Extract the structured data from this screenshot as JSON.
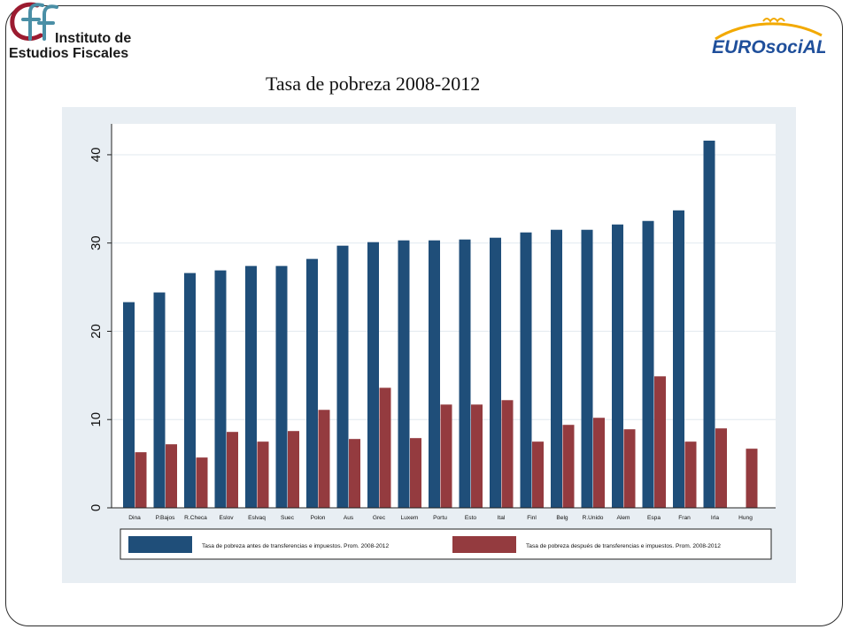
{
  "header": {
    "ief_logo_text_line1": "Instituto de",
    "ief_logo_text_line2": "Estudios Fiscales",
    "eurosocial_logo_text": "EUROsociAL",
    "slide_title": "Tasa de pobreza 2008-2012"
  },
  "colors": {
    "before": "#1f4e79",
    "after": "#943b3f",
    "plot_bg": "#ffffff",
    "outer_bg": "#e8eef3"
  },
  "chart_data": {
    "type": "bar",
    "categories": [
      "Dina",
      "P.Bajos",
      "R.Checa",
      "Eslov",
      "Eslvaq",
      "Suec",
      "Polon",
      "Aus",
      "Grec",
      "Luxem",
      "Portu",
      "Esto",
      "Ital",
      "Finl",
      "Belg",
      "R.Unido",
      "Alem",
      "Espa",
      "Fran",
      "Irla",
      "Hung"
    ],
    "series": [
      {
        "name": "Tasa de pobreza antes de transferencias e impuestos. Prom. 2008-2012",
        "values": [
          23.3,
          24.4,
          26.6,
          26.9,
          27.4,
          27.4,
          28.2,
          29.7,
          30.1,
          30.3,
          30.3,
          30.4,
          30.6,
          31.2,
          31.5,
          31.5,
          32.1,
          32.5,
          33.7,
          41.6,
          null
        ]
      },
      {
        "name": "Tasa de pobreza después de transferencias e impuestos. Prom. 2008-2012",
        "values": [
          6.3,
          7.2,
          5.7,
          8.6,
          7.5,
          8.7,
          11.1,
          7.8,
          13.6,
          7.9,
          11.7,
          11.7,
          12.2,
          7.5,
          9.4,
          10.2,
          8.9,
          14.9,
          7.5,
          9.0,
          6.7
        ]
      }
    ],
    "yticks": [
      0,
      10,
      20,
      30,
      40
    ],
    "ylim": [
      0,
      43.5
    ],
    "grid": true,
    "legend_position": "bottom"
  }
}
